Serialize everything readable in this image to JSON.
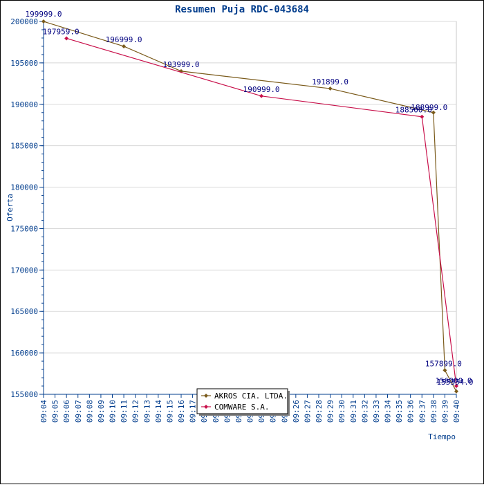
{
  "chart_data": {
    "type": "line",
    "title": "Resumen Puja RDC-043684",
    "xlabel": "Tiempo",
    "ylabel": "Oferta",
    "ylim": [
      155000,
      200000
    ],
    "xlim": [
      "09:04",
      "09:40"
    ],
    "y_ticks": [
      155000,
      160000,
      165000,
      170000,
      175000,
      180000,
      185000,
      190000,
      195000,
      200000
    ],
    "x_ticks": [
      "09:04",
      "09:05",
      "09:06",
      "09:07",
      "09:08",
      "09:09",
      "09:10",
      "09:11",
      "09:12",
      "09:13",
      "09:14",
      "09:15",
      "09:16",
      "09:17",
      "09:18",
      "09:19",
      "09:20",
      "09:21",
      "09:22",
      "09:23",
      "09:24",
      "09:25",
      "09:26",
      "09:27",
      "09:28",
      "09:29",
      "09:30",
      "09:31",
      "09:32",
      "09:33",
      "09:34",
      "09:35",
      "09:36",
      "09:37",
      "09:38",
      "09:39",
      "09:40"
    ],
    "grid": true,
    "legend_position": "bottom-center",
    "series": [
      {
        "name": "AKROS CIA. LTDA.",
        "color": "#7a5a1a",
        "points": [
          {
            "x": "09:04",
            "y": 199999.0,
            "label": "199999.0"
          },
          {
            "x": "09:11",
            "y": 196999.0,
            "label": "196999.0"
          },
          {
            "x": "09:16",
            "y": 193999.0,
            "label": "193999.0"
          },
          {
            "x": "09:29",
            "y": 191899.0,
            "label": "191899.0"
          },
          {
            "x": "09:38",
            "y": 188999.0,
            "label": "188999.0"
          },
          {
            "x": "09:39",
            "y": 157899.0,
            "label": "157899.0"
          },
          {
            "x": "09:40",
            "y": 155354.0,
            "label": "155354.0"
          }
        ]
      },
      {
        "name": "COMWARE S.A.",
        "color": "#c8104a",
        "points": [
          {
            "x": "09:06",
            "y": 197959.0,
            "label": "197959.0"
          },
          {
            "x": "09:23",
            "y": 190999.0,
            "label": "190999.0"
          },
          {
            "x": "09:37",
            "y": 188500.0,
            "label": "188500.0"
          },
          {
            "x": "09:40",
            "y": 156000.0,
            "label": "156000.0"
          }
        ]
      }
    ]
  }
}
